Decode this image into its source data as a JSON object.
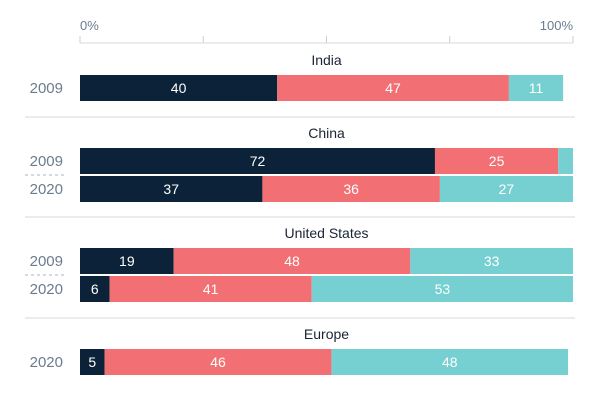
{
  "chart_data": {
    "type": "bar",
    "orientation": "horizontal-stacked",
    "xlim": [
      0,
      100
    ],
    "ticks": [
      "0%",
      "",
      "",
      "",
      "100%"
    ],
    "series_colors": [
      "#0b2239",
      "#f27073",
      "#76cfd0"
    ],
    "groups": [
      {
        "title": "India",
        "rows": [
          {
            "year": "2009",
            "values": [
              40,
              47,
              11
            ],
            "labels": [
              "40",
              "47",
              "11"
            ]
          }
        ]
      },
      {
        "title": "China",
        "rows": [
          {
            "year": "2009",
            "values": [
              72,
              25,
              3
            ],
            "labels": [
              "72",
              "25",
              ""
            ]
          },
          {
            "year": "2020",
            "values": [
              37,
              36,
              27
            ],
            "labels": [
              "37",
              "36",
              "27"
            ]
          }
        ]
      },
      {
        "title": "United States",
        "rows": [
          {
            "year": "2009",
            "values": [
              19,
              48,
              33
            ],
            "labels": [
              "19",
              "48",
              "33"
            ]
          },
          {
            "year": "2020",
            "values": [
              6,
              41,
              53
            ],
            "labels": [
              "6",
              "41",
              "53"
            ]
          }
        ]
      },
      {
        "title": "Europe",
        "rows": [
          {
            "year": "2020",
            "values": [
              5,
              46,
              48
            ],
            "labels": [
              "5",
              "46",
              "48"
            ]
          }
        ]
      }
    ]
  }
}
